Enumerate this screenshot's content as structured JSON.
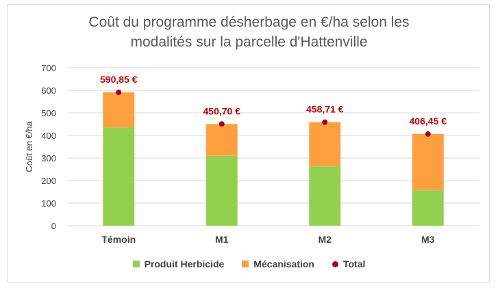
{
  "chart_data": {
    "type": "bar",
    "stacked": true,
    "title": "Coût du programme désherbage en €/ha selon les\nmodalités sur la parcelle d'Hattenville",
    "xlabel": "",
    "ylabel": "Coût en €/ha",
    "ylim": [
      0,
      700
    ],
    "yticks": [
      "0",
      "100",
      "200",
      "300",
      "400",
      "500",
      "600",
      "700"
    ],
    "ytick_values": [
      0,
      100,
      200,
      300,
      400,
      500,
      600,
      700
    ],
    "grid": true,
    "legend_position": "bottom",
    "categories": [
      "Témoin",
      "M1",
      "M2",
      "M3"
    ],
    "series": [
      {
        "name": "Produit Herbicide",
        "type": "bar",
        "color": "#92d050",
        "values": [
          435,
          310,
          263,
          157
        ]
      },
      {
        "name": "Mécanisation",
        "type": "bar",
        "color": "#ffa040",
        "values": [
          155.85,
          140.7,
          195.71,
          249.45
        ]
      },
      {
        "name": "Total",
        "type": "marker",
        "color": "#a50021",
        "values": [
          590.85,
          450.7,
          458.71,
          406.45
        ]
      }
    ],
    "data_labels": [
      "590,85 €",
      "450,70 €",
      "458,71 €",
      "406,45 €"
    ]
  }
}
